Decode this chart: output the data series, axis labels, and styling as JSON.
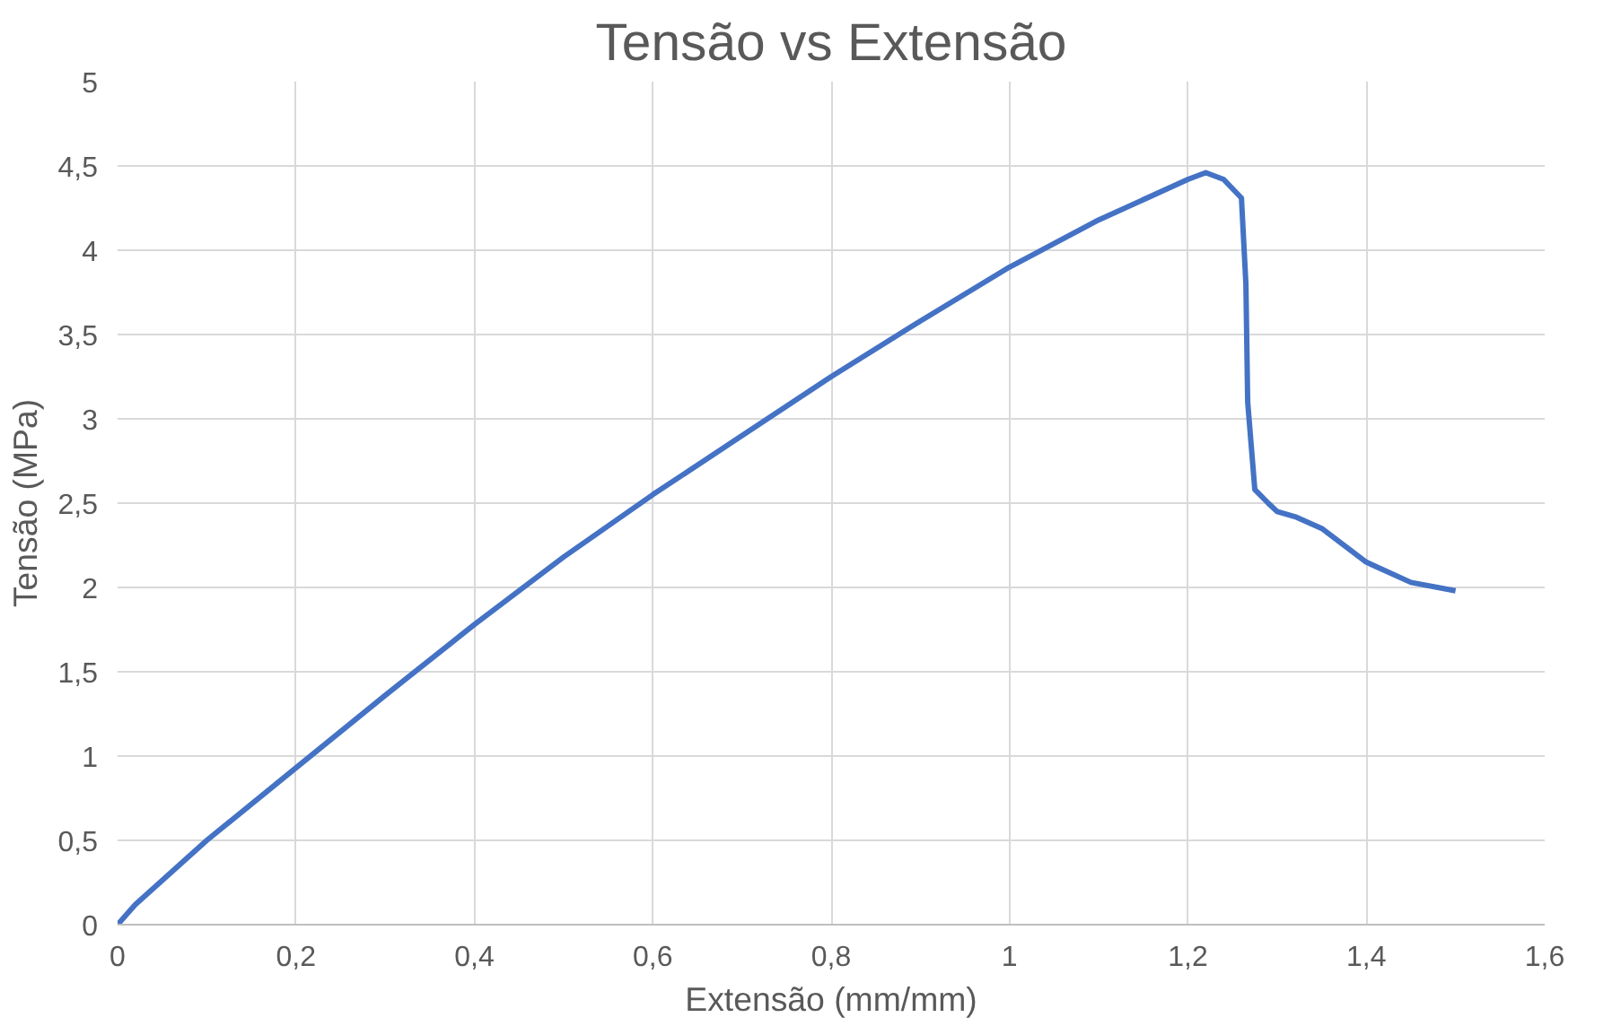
{
  "chart_data": {
    "type": "line",
    "title": "Tensão vs Extensão",
    "xlabel": "Extensão (mm/mm)",
    "ylabel": "Tensão (MPa)",
    "xlim": [
      0,
      1.6
    ],
    "ylim": [
      0,
      5
    ],
    "xticks": [
      {
        "value": 0,
        "label": "0"
      },
      {
        "value": 0.2,
        "label": "0,2"
      },
      {
        "value": 0.4,
        "label": "0,4"
      },
      {
        "value": 0.6,
        "label": "0,6"
      },
      {
        "value": 0.8,
        "label": "0,8"
      },
      {
        "value": 1,
        "label": "1"
      },
      {
        "value": 1.2,
        "label": "1,2"
      },
      {
        "value": 1.4,
        "label": "1,4"
      },
      {
        "value": 1.6,
        "label": "1,6"
      }
    ],
    "yticks": [
      {
        "value": 0,
        "label": "0"
      },
      {
        "value": 0.5,
        "label": "0,5"
      },
      {
        "value": 1,
        "label": "1"
      },
      {
        "value": 1.5,
        "label": "1,5"
      },
      {
        "value": 2,
        "label": "2"
      },
      {
        "value": 2.5,
        "label": "2,5"
      },
      {
        "value": 3,
        "label": "3"
      },
      {
        "value": 3.5,
        "label": "3,5"
      },
      {
        "value": 4,
        "label": "4"
      },
      {
        "value": 4.5,
        "label": "4,5"
      },
      {
        "value": 5,
        "label": "5"
      }
    ],
    "grid": true,
    "x": [
      0,
      0.02,
      0.1,
      0.2,
      0.3,
      0.4,
      0.5,
      0.6,
      0.7,
      0.8,
      0.9,
      1.0,
      1.1,
      1.2,
      1.22,
      1.24,
      1.26,
      1.265,
      1.267,
      1.275,
      1.29,
      1.3,
      1.32,
      1.35,
      1.4,
      1.45,
      1.5
    ],
    "series": [
      {
        "color": "#4472c4",
        "values": [
          0,
          0.12,
          0.5,
          0.93,
          1.36,
          1.78,
          2.18,
          2.55,
          2.9,
          3.25,
          3.58,
          3.9,
          4.18,
          4.42,
          4.46,
          4.42,
          4.31,
          3.8,
          3.1,
          2.58,
          2.5,
          2.45,
          2.42,
          2.35,
          2.15,
          2.03,
          1.98
        ]
      }
    ]
  }
}
